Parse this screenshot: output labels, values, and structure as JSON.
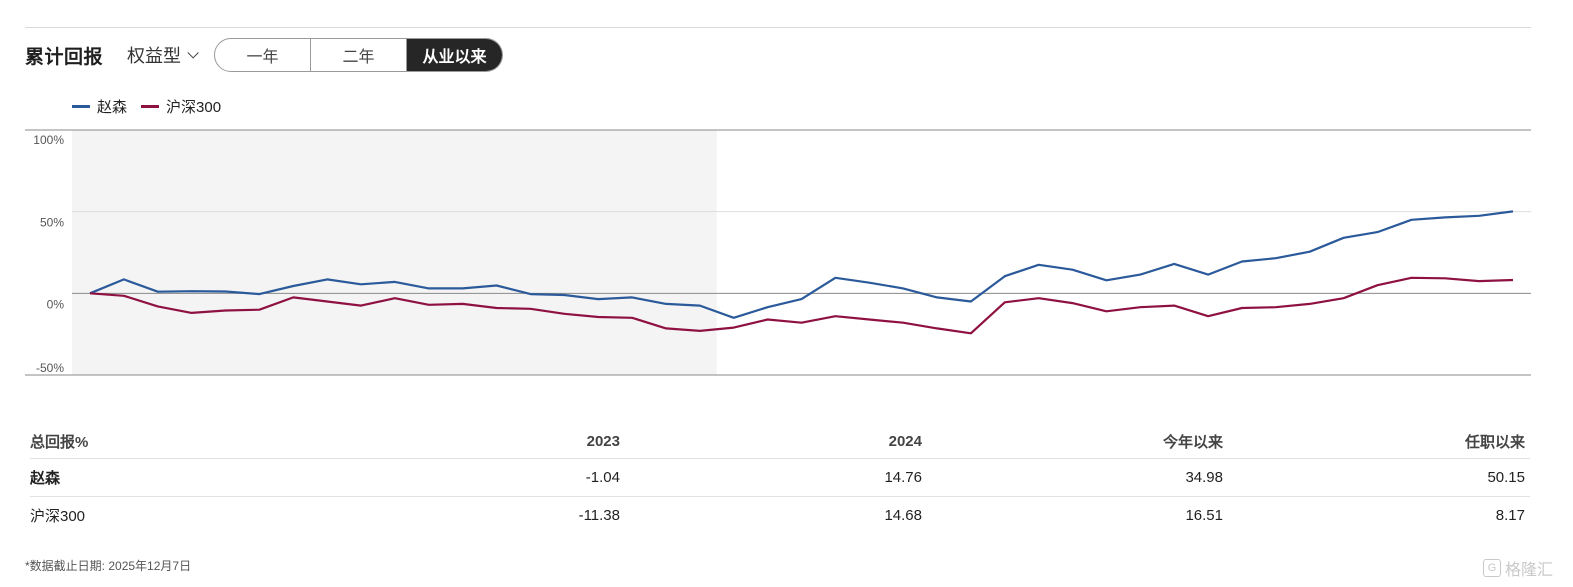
{
  "header": {
    "title": "累计回报",
    "dropdown_label": "权益型",
    "tabs": [
      {
        "label": "一年",
        "active": false
      },
      {
        "label": "二年",
        "active": false
      },
      {
        "label": "从业以来",
        "active": true
      }
    ]
  },
  "colors": {
    "manager": "#2b5a9b",
    "index": "#8e1142",
    "shade": "#f4f4f4"
  },
  "chart_data": {
    "type": "line",
    "title": "",
    "xlabel": "",
    "ylabel": "",
    "ylim": [
      -50,
      100
    ],
    "yticks": [
      -50,
      0,
      50,
      100
    ],
    "ytick_labels": [
      "-50%",
      "0%",
      "50%",
      "100%"
    ],
    "legend_position": "top-left",
    "shaded_period_point_count": 20,
    "series": [
      {
        "name": "赵森",
        "color": "#2b5a9b",
        "values": [
          0,
          8.5,
          1,
          1.3,
          1.1,
          -0.5,
          4.5,
          8.5,
          5.5,
          7,
          3,
          3,
          4.8,
          -0.5,
          -1,
          -3.5,
          -2.5,
          -6.5,
          -7.5,
          -15,
          -8.5,
          -3.5,
          9.5,
          6.5,
          3,
          -2.5,
          -5,
          10.5,
          17.5,
          14.5,
          8,
          11.5,
          18,
          11.5,
          19.5,
          21.5,
          25.5,
          34,
          37.5,
          45,
          46.5,
          47.5,
          50.15
        ]
      },
      {
        "name": "沪深300",
        "color": "#8e1142",
        "values": [
          0,
          -1.5,
          -8,
          -12,
          -10.5,
          -10,
          -2.5,
          -5,
          -7.5,
          -3,
          -7,
          -6.5,
          -9,
          -9.5,
          -12.5,
          -14.5,
          -15,
          -21.5,
          -23,
          -21,
          -16,
          -18,
          -14,
          -16,
          -18,
          -21.5,
          -24.5,
          -5.5,
          -3,
          -6,
          -11,
          -8.5,
          -7.5,
          -14,
          -9,
          -8.5,
          -6.5,
          -3,
          5,
          9.5,
          9.2,
          7.5,
          8.17
        ]
      }
    ]
  },
  "table": {
    "headers": [
      "总回报%",
      "2023",
      "2024",
      "今年以来",
      "任职以来"
    ],
    "rows": [
      {
        "name": "赵森",
        "values": [
          "-1.04",
          "14.76",
          "34.98",
          "50.15"
        ]
      },
      {
        "name": "沪深300",
        "values": [
          "-11.38",
          "14.68",
          "16.51",
          "8.17"
        ]
      }
    ]
  },
  "footnote": {
    "label": "*数据截止日期:",
    "date": "2025年12月7日"
  },
  "watermark": {
    "icon": "G",
    "text": "格隆汇"
  }
}
